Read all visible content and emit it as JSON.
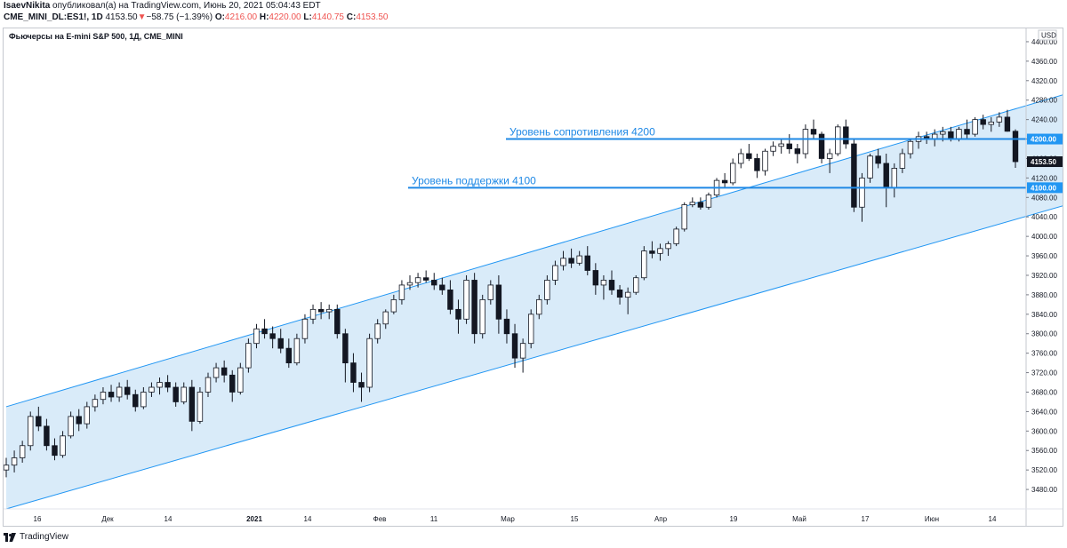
{
  "header": {
    "user": "IsaevNikita",
    "published_text": "опубликовал(а) на TradingView.com, Июнь 20, 2021 05:04:43 EDT",
    "symbol": "CME_MINI_DL:ES1!, 1D",
    "last": "4153.50",
    "change_arrow": "▼",
    "change": "−58.75 (−1.39%)",
    "ohlc": [
      {
        "label": "O:",
        "value": "4216.00"
      },
      {
        "label": "H:",
        "value": "4220.00"
      },
      {
        "label": "L:",
        "value": "4140.75"
      },
      {
        "label": "C:",
        "value": "4153.50"
      }
    ]
  },
  "legend_title": "Фьючерсы на E-mini S&P 500, 1Д, CME_MINI",
  "footer": {
    "brand": "TradingView",
    "logo_icon": "tradingview-logo-icon"
  },
  "colors": {
    "channel_fill": "#cfe6f8",
    "channel_line": "#2196f3",
    "level_line": "#1e88e5",
    "level_badge": "#2196f3",
    "price_badge": "#131722",
    "candle": "#131722"
  },
  "chart_data": {
    "type": "candlestick",
    "currency": "USD",
    "ylim": [
      3440,
      4420
    ],
    "y_ticks": [
      4400,
      4360,
      4320,
      4280,
      4240,
      4200,
      4160,
      4120,
      4080,
      4040,
      4000,
      3960,
      3920,
      3880,
      3840,
      3800,
      3760,
      3720,
      3680,
      3640,
      3600,
      3560,
      3520,
      3480
    ],
    "x_labels": [
      "16",
      "Дек",
      "14",
      "2021",
      "14",
      "Фев",
      "11",
      "Мар",
      "15",
      "Апр",
      "19",
      "Май",
      "17",
      "Июн",
      "14"
    ],
    "x_label_bold": [
      "2021"
    ],
    "last_price": 4153.5,
    "last_price_label": "4153.50",
    "levels": [
      {
        "label": "Уровень сопротивления 4200",
        "value": 4200,
        "badge": "4200.00"
      },
      {
        "label": "Уровень поддержки 4100",
        "value": 4100,
        "badge": "4100.00"
      }
    ],
    "channel": {
      "upper": [
        [
          0,
          3650
        ],
        [
          145,
          4360
        ]
      ],
      "lower": [
        [
          0,
          3440
        ],
        [
          145,
          4130
        ]
      ]
    },
    "candles": [
      [
        3520,
        3545,
        3505,
        3530
      ],
      [
        3530,
        3560,
        3515,
        3545
      ],
      [
        3545,
        3580,
        3535,
        3570
      ],
      [
        3570,
        3640,
        3560,
        3630
      ],
      [
        3630,
        3650,
        3600,
        3610
      ],
      [
        3610,
        3625,
        3560,
        3570
      ],
      [
        3570,
        3585,
        3540,
        3550
      ],
      [
        3550,
        3600,
        3545,
        3590
      ],
      [
        3590,
        3640,
        3585,
        3630
      ],
      [
        3630,
        3645,
        3600,
        3615
      ],
      [
        3615,
        3660,
        3605,
        3650
      ],
      [
        3650,
        3675,
        3640,
        3665
      ],
      [
        3665,
        3690,
        3655,
        3680
      ],
      [
        3680,
        3695,
        3660,
        3670
      ],
      [
        3670,
        3700,
        3660,
        3690
      ],
      [
        3690,
        3705,
        3665,
        3675
      ],
      [
        3675,
        3685,
        3640,
        3650
      ],
      [
        3650,
        3690,
        3645,
        3680
      ],
      [
        3680,
        3700,
        3670,
        3690
      ],
      [
        3690,
        3710,
        3675,
        3700
      ],
      [
        3700,
        3715,
        3680,
        3690
      ],
      [
        3690,
        3700,
        3650,
        3660
      ],
      [
        3660,
        3700,
        3655,
        3690
      ],
      [
        3690,
        3705,
        3600,
        3620
      ],
      [
        3620,
        3690,
        3615,
        3680
      ],
      [
        3680,
        3720,
        3670,
        3710
      ],
      [
        3710,
        3740,
        3700,
        3730
      ],
      [
        3730,
        3745,
        3700,
        3715
      ],
      [
        3715,
        3725,
        3660,
        3680
      ],
      [
        3680,
        3740,
        3675,
        3730
      ],
      [
        3730,
        3790,
        3720,
        3780
      ],
      [
        3780,
        3820,
        3770,
        3810
      ],
      [
        3810,
        3830,
        3790,
        3800
      ],
      [
        3800,
        3815,
        3770,
        3790
      ],
      [
        3790,
        3810,
        3760,
        3770
      ],
      [
        3770,
        3790,
        3730,
        3740
      ],
      [
        3740,
        3800,
        3735,
        3790
      ],
      [
        3790,
        3840,
        3780,
        3830
      ],
      [
        3830,
        3860,
        3820,
        3850
      ],
      [
        3850,
        3865,
        3830,
        3845
      ],
      [
        3845,
        3860,
        3830,
        3850
      ],
      [
        3850,
        3860,
        3790,
        3800
      ],
      [
        3800,
        3810,
        3700,
        3740
      ],
      [
        3740,
        3760,
        3680,
        3700
      ],
      [
        3700,
        3720,
        3660,
        3690
      ],
      [
        3690,
        3800,
        3680,
        3790
      ],
      [
        3790,
        3830,
        3780,
        3820
      ],
      [
        3820,
        3850,
        3810,
        3845
      ],
      [
        3845,
        3880,
        3840,
        3870
      ],
      [
        3870,
        3910,
        3860,
        3900
      ],
      [
        3900,
        3920,
        3890,
        3905
      ],
      [
        3905,
        3925,
        3895,
        3915
      ],
      [
        3915,
        3930,
        3905,
        3910
      ],
      [
        3910,
        3925,
        3890,
        3900
      ],
      [
        3900,
        3915,
        3880,
        3890
      ],
      [
        3890,
        3910,
        3840,
        3850
      ],
      [
        3850,
        3870,
        3800,
        3830
      ],
      [
        3830,
        3920,
        3820,
        3910
      ],
      [
        3910,
        3925,
        3780,
        3800
      ],
      [
        3800,
        3880,
        3790,
        3870
      ],
      [
        3870,
        3910,
        3860,
        3900
      ],
      [
        3900,
        3920,
        3800,
        3830
      ],
      [
        3830,
        3850,
        3780,
        3800
      ],
      [
        3800,
        3820,
        3730,
        3750
      ],
      [
        3750,
        3790,
        3720,
        3780
      ],
      [
        3780,
        3850,
        3770,
        3840
      ],
      [
        3840,
        3880,
        3830,
        3870
      ],
      [
        3870,
        3920,
        3860,
        3910
      ],
      [
        3910,
        3950,
        3900,
        3940
      ],
      [
        3940,
        3970,
        3930,
        3955
      ],
      [
        3955,
        3975,
        3935,
        3945
      ],
      [
        3945,
        3970,
        3940,
        3960
      ],
      [
        3960,
        3980,
        3920,
        3930
      ],
      [
        3930,
        3945,
        3880,
        3900
      ],
      [
        3900,
        3920,
        3870,
        3910
      ],
      [
        3910,
        3930,
        3880,
        3890
      ],
      [
        3890,
        3900,
        3860,
        3875
      ],
      [
        3875,
        3895,
        3840,
        3885
      ],
      [
        3885,
        3920,
        3880,
        3915
      ],
      [
        3915,
        3980,
        3910,
        3970
      ],
      [
        3970,
        3990,
        3955,
        3965
      ],
      [
        3965,
        3985,
        3950,
        3975
      ],
      [
        3975,
        3990,
        3960,
        3985
      ],
      [
        3985,
        4020,
        3980,
        4015
      ],
      [
        4015,
        4070,
        4010,
        4065
      ],
      [
        4065,
        4080,
        4060,
        4070
      ],
      [
        4070,
        4080,
        4055,
        4060
      ],
      [
        4060,
        4090,
        4055,
        4085
      ],
      [
        4085,
        4120,
        4080,
        4115
      ],
      [
        4115,
        4130,
        4100,
        4110
      ],
      [
        4110,
        4160,
        4105,
        4150
      ],
      [
        4150,
        4180,
        4140,
        4170
      ],
      [
        4170,
        4190,
        4155,
        4160
      ],
      [
        4160,
        4170,
        4120,
        4135
      ],
      [
        4135,
        4180,
        4125,
        4175
      ],
      [
        4175,
        4195,
        4165,
        4185
      ],
      [
        4185,
        4200,
        4170,
        4190
      ],
      [
        4190,
        4210,
        4170,
        4180
      ],
      [
        4180,
        4190,
        4150,
        4170
      ],
      [
        4170,
        4230,
        4160,
        4220
      ],
      [
        4220,
        4240,
        4200,
        4210
      ],
      [
        4210,
        4215,
        4150,
        4160
      ],
      [
        4160,
        4180,
        4130,
        4170
      ],
      [
        4170,
        4230,
        4165,
        4225
      ],
      [
        4225,
        4240,
        4180,
        4190
      ],
      [
        4190,
        4200,
        4050,
        4060
      ],
      [
        4060,
        4130,
        4030,
        4120
      ],
      [
        4120,
        4170,
        4110,
        4165
      ],
      [
        4165,
        4180,
        4140,
        4150
      ],
      [
        4150,
        4170,
        4060,
        4100
      ],
      [
        4100,
        4150,
        4080,
        4140
      ],
      [
        4140,
        4180,
        4130,
        4170
      ],
      [
        4170,
        4200,
        4160,
        4195
      ],
      [
        4195,
        4215,
        4180,
        4205
      ],
      [
        4205,
        4215,
        4190,
        4200
      ],
      [
        4200,
        4220,
        4185,
        4210
      ],
      [
        4210,
        4225,
        4195,
        4215
      ],
      [
        4215,
        4225,
        4195,
        4200
      ],
      [
        4200,
        4225,
        4195,
        4220
      ],
      [
        4220,
        4240,
        4200,
        4210
      ],
      [
        4210,
        4245,
        4205,
        4240
      ],
      [
        4240,
        4250,
        4220,
        4230
      ],
      [
        4230,
        4245,
        4215,
        4235
      ],
      [
        4235,
        4255,
        4225,
        4245
      ],
      [
        4245,
        4260,
        4215,
        4216
      ],
      [
        4216,
        4220,
        4140.75,
        4153.5
      ]
    ]
  }
}
